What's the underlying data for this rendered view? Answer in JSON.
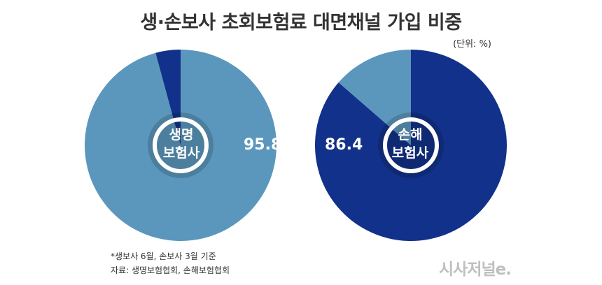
{
  "chart_data": {
    "type": "pie",
    "title": "생·손보사 초회보험료 대면채널 가입 비중",
    "unit_note": "(단위: %)",
    "charts": [
      {
        "center_label_line1": "생명",
        "center_label_line2": "보험사",
        "value_label": "95.8",
        "slices": [
          {
            "value": 95.8,
            "color": "#5b97bc"
          },
          {
            "value": 4.2,
            "color": "#12318a"
          }
        ]
      },
      {
        "center_label_line1": "손해",
        "center_label_line2": "보험사",
        "value_label": "86.4",
        "slices": [
          {
            "value": 86.4,
            "color": "#12318a"
          },
          {
            "value": 13.6,
            "color": "#5b97bc"
          }
        ]
      }
    ]
  },
  "footnote": {
    "line1": "*생보사 6월, 손보사 3월 기준",
    "line2": "자료: 생명보험협회, 손해보험협회"
  },
  "logo_text": "시사저널e."
}
